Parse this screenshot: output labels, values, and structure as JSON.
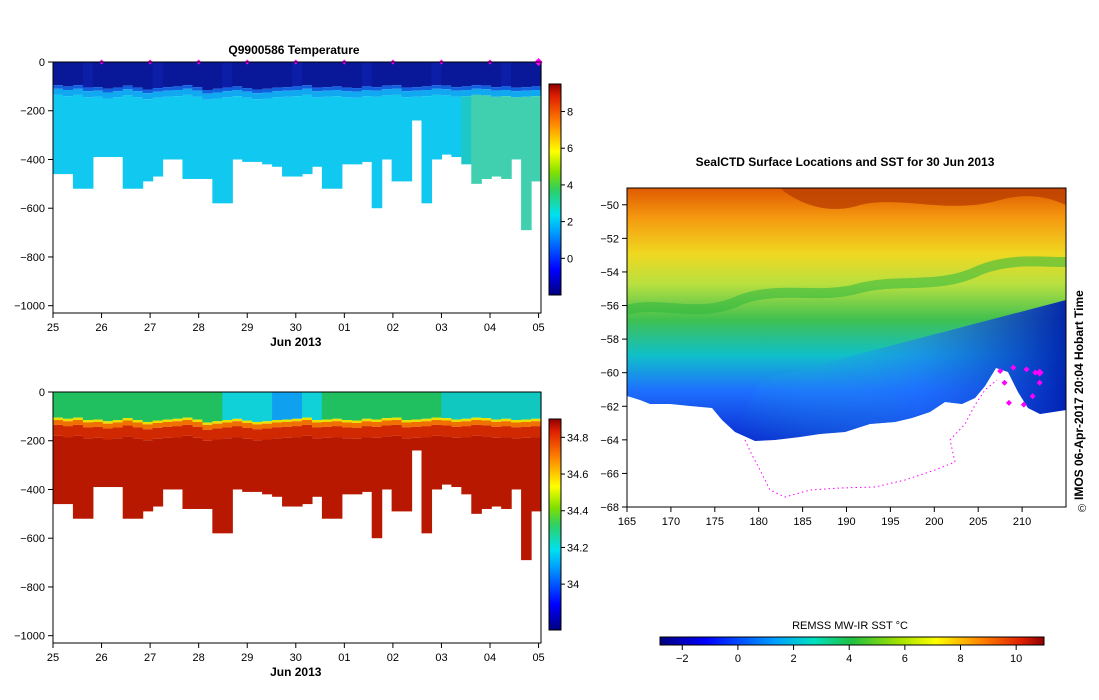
{
  "temperature_title": "Q9900586  Temperature",
  "map_title": "SealCTD Surface Locations and SST for 30 Jun 2013",
  "sst_label": "REMSS MW-IR SST °C",
  "side_caption": "IMOS 06-Apr-2017 20:04 Hobart Time",
  "copyright_symbol": "©",
  "colors": {
    "marker": "#ff00ff",
    "axis": "#000000"
  },
  "chart_data": [
    {
      "type": "heatmap",
      "id": "temperature-section",
      "title": "Q9900586  Temperature",
      "xlabel": "Jun 2013",
      "x_ticks": [
        "25",
        "26",
        "27",
        "28",
        "29",
        "30",
        "01",
        "02",
        "03",
        "04",
        "05"
      ],
      "xlim": [
        25,
        35.05
      ],
      "y_ticks": [
        "0",
        "−200",
        "−400",
        "−600",
        "−800",
        "−1000"
      ],
      "y_tick_values": [
        0,
        -200,
        -400,
        -600,
        -800,
        -1000
      ],
      "ylim": [
        -1030,
        0
      ],
      "profile_times": [
        26,
        27,
        28,
        29,
        30,
        31,
        32,
        33,
        34,
        35
      ],
      "profile_bottoms": [
        460,
        460,
        520,
        520,
        390,
        390,
        390,
        520,
        520,
        490,
        470,
        400,
        400,
        480,
        480,
        480,
        580,
        580,
        400,
        410,
        410,
        420,
        430,
        470,
        470,
        460,
        430,
        520,
        520,
        420,
        420,
        410,
        600,
        400,
        490,
        490,
        240,
        580,
        400,
        380,
        390,
        420,
        500,
        480,
        470,
        480,
        400,
        690,
        490
      ],
      "warm_layer_depth": [
        110,
        115,
        110,
        120,
        118,
        125,
        120,
        112,
        120,
        128,
        122,
        118,
        115,
        110,
        118,
        130,
        125,
        120,
        115,
        122,
        128,
        125,
        120,
        118,
        115,
        110,
        120,
        118,
        115,
        120,
        122,
        115,
        118,
        112,
        110,
        120,
        118,
        115,
        110,
        112,
        118,
        115,
        110,
        112,
        118,
        115,
        120,
        118,
        115
      ],
      "colorbar": {
        "min": -2,
        "max": 9.5,
        "ticks": [
          "0",
          "2",
          "4",
          "6",
          "8"
        ],
        "tick_values": [
          0,
          2,
          4,
          6,
          8
        ]
      }
    },
    {
      "type": "heatmap",
      "id": "salinity-section",
      "title": "",
      "xlabel": "Jun 2013",
      "x_ticks": [
        "25",
        "26",
        "27",
        "28",
        "29",
        "30",
        "01",
        "02",
        "03",
        "04",
        "05"
      ],
      "xlim": [
        25,
        35.05
      ],
      "y_ticks": [
        "0",
        "−200",
        "−400",
        "−600",
        "−800",
        "−1000"
      ],
      "y_tick_values": [
        0,
        -200,
        -400,
        -600,
        -800,
        -1000
      ],
      "ylim": [
        -1030,
        0
      ],
      "colorbar": {
        "min": 33.75,
        "max": 34.9,
        "ticks": [
          "34",
          "34.2",
          "34.4",
          "34.6",
          "34.8"
        ],
        "tick_values": [
          34,
          34.2,
          34.4,
          34.6,
          34.8
        ]
      }
    },
    {
      "type": "heatmap",
      "id": "sst-map",
      "title": "SealCTD Surface Locations and SST for 30 Jun 2013",
      "x_ticks": [
        "165",
        "170",
        "175",
        "180",
        "185",
        "190",
        "195",
        "200",
        "205",
        "210"
      ],
      "x_tick_values": [
        165,
        170,
        175,
        180,
        185,
        190,
        195,
        200,
        205,
        210
      ],
      "xlim": [
        165,
        215
      ],
      "y_ticks": [
        "−50",
        "−52",
        "−54",
        "−56",
        "−58",
        "−60",
        "−62",
        "−64",
        "−66",
        "−68"
      ],
      "y_tick_values": [
        -50,
        -52,
        -54,
        -56,
        -58,
        -60,
        -62,
        -64,
        -66,
        -68
      ],
      "ylim": [
        -68,
        -49
      ],
      "seal_track": [
        [
          207.5,
          -59.9
        ],
        [
          208,
          -60.6
        ],
        [
          208.5,
          -61.8
        ],
        [
          210.2,
          -61.9
        ],
        [
          211.2,
          -61.4
        ],
        [
          212,
          -60.6
        ],
        [
          211.5,
          -60
        ],
        [
          210.5,
          -59.8
        ],
        [
          209,
          -59.7
        ]
      ],
      "current_position": [
        212,
        -60
      ],
      "colorbar": {
        "label": "REMSS MW-IR SST °C",
        "min": -2.8,
        "max": 11,
        "ticks": [
          "−2",
          "0",
          "2",
          "4",
          "6",
          "8",
          "10"
        ],
        "tick_values": [
          -2,
          0,
          2,
          4,
          6,
          8,
          10
        ]
      }
    }
  ]
}
